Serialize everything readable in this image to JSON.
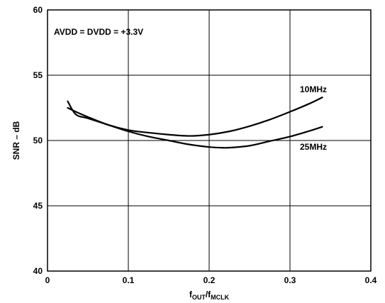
{
  "chart_data": {
    "type": "line",
    "annotation": "AVDD = DVDD = +3.3V",
    "xlabel": {
      "main": "f",
      "main_sub": "OUT",
      "sep": "/f",
      "sep_sub": "MCLK"
    },
    "ylabel": "SNR – dB",
    "xlim": [
      0,
      0.4
    ],
    "ylim": [
      40,
      60
    ],
    "x_ticks": [
      0,
      0.1,
      0.2,
      0.3,
      0.4
    ],
    "x_tick_labels": [
      "0",
      "0.1",
      "0.2",
      "0.3",
      "0.4"
    ],
    "y_ticks": [
      40,
      45,
      50,
      55,
      60
    ],
    "y_tick_labels": [
      "40",
      "45",
      "50",
      "55",
      "60"
    ],
    "grid": true,
    "series": [
      {
        "name": "10MHz",
        "x": [
          0.025,
          0.035,
          0.05,
          0.075,
          0.1,
          0.125,
          0.15,
          0.175,
          0.2,
          0.225,
          0.25,
          0.275,
          0.3,
          0.325,
          0.34
        ],
        "y": [
          52.5,
          52.2,
          51.8,
          51.2,
          50.8,
          50.6,
          50.45,
          50.35,
          50.45,
          50.7,
          51.1,
          51.6,
          52.2,
          52.85,
          53.3
        ]
      },
      {
        "name": "25MHz",
        "x": [
          0.025,
          0.035,
          0.05,
          0.075,
          0.1,
          0.125,
          0.15,
          0.175,
          0.2,
          0.215,
          0.225,
          0.25,
          0.275,
          0.3,
          0.325,
          0.34
        ],
        "y": [
          53.0,
          52.0,
          51.7,
          51.2,
          50.7,
          50.3,
          50.0,
          49.7,
          49.5,
          49.45,
          49.45,
          49.6,
          49.95,
          50.3,
          50.75,
          51.05
        ]
      }
    ]
  }
}
